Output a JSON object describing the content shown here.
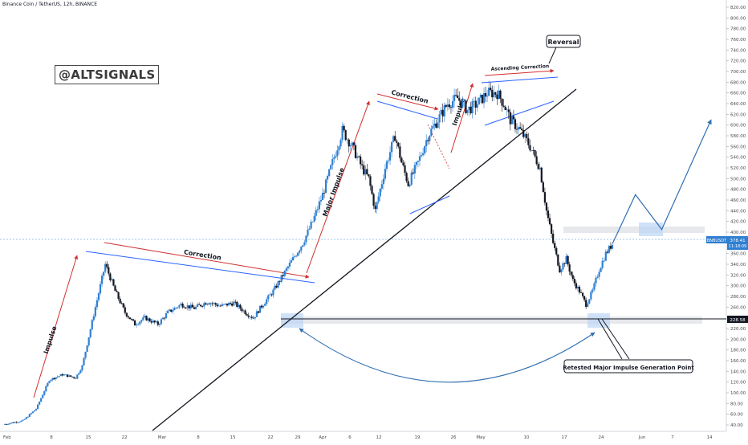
{
  "header": {
    "symbol_line": "Binance Coin / TetherUS, 12h, BINANCE"
  },
  "watermark": "@ALTSIGNALS",
  "price_badges": {
    "current_price": "378.41",
    "countdown": "11:18:09",
    "symbol_tag": "BNBUSDT",
    "support_price": "228.58"
  },
  "annotations": {
    "impulse": "Impulse",
    "correction_1": "Correction",
    "major_impulse": "Major Impulse",
    "correction_2": "Correction",
    "impulse_2": "Impulse",
    "ascending_correction": "Ascending Correction",
    "reversal": "Reversal",
    "retest": "Retested Major Impulse Generation Point"
  },
  "colors": {
    "candle_up": "#2f7fd1",
    "candle_down": "#131722",
    "arrow_red": "#d12e2e",
    "trend_blue": "#2962ff",
    "projection_blue": "#2f6fb0",
    "support_zone": "#e6e8ec",
    "highlight_zone": "#bcd6f5",
    "axis_text": "#4a4a4a"
  },
  "chart_data": {
    "type": "candlestick",
    "symbol": "BNBUSDT",
    "exchange": "BINANCE",
    "timeframe": "12h",
    "y_axis_ticks": [
      40,
      60,
      80,
      100,
      120,
      140,
      160,
      180,
      200,
      220,
      240,
      260,
      280,
      300,
      320,
      340,
      360,
      380,
      400,
      420,
      440,
      460,
      480,
      500,
      520,
      540,
      560,
      580,
      600,
      620,
      640,
      660,
      680,
      700,
      720,
      740,
      760,
      780,
      800,
      820
    ],
    "x_axis_ticks": [
      "Feb",
      "8",
      "15",
      "22",
      "Mar",
      "8",
      "15",
      "22",
      "29",
      "Apr",
      "6",
      "12",
      "19",
      "26",
      "May",
      "10",
      "17",
      "24",
      "Jun",
      "7",
      "14"
    ],
    "ylim": [
      30,
      830
    ],
    "price_path": [
      {
        "t": 0,
        "price": 41
      },
      {
        "t": 6,
        "price": 48
      },
      {
        "t": 10,
        "price": 70
      },
      {
        "t": 14,
        "price": 124
      },
      {
        "t": 18,
        "price": 134
      },
      {
        "t": 22,
        "price": 128
      },
      {
        "t": 24,
        "price": 150
      },
      {
        "t": 28,
        "price": 260
      },
      {
        "t": 31,
        "price": 340
      },
      {
        "t": 34,
        "price": 290
      },
      {
        "t": 37,
        "price": 250
      },
      {
        "t": 40,
        "price": 228
      },
      {
        "t": 43,
        "price": 240
      },
      {
        "t": 47,
        "price": 228
      },
      {
        "t": 50,
        "price": 250
      },
      {
        "t": 54,
        "price": 265
      },
      {
        "t": 58,
        "price": 258
      },
      {
        "t": 62,
        "price": 270
      },
      {
        "t": 66,
        "price": 262
      },
      {
        "t": 70,
        "price": 268
      },
      {
        "t": 74,
        "price": 248
      },
      {
        "t": 76,
        "price": 240
      },
      {
        "t": 78,
        "price": 258
      },
      {
        "t": 82,
        "price": 290
      },
      {
        "t": 85,
        "price": 320
      },
      {
        "t": 88,
        "price": 350
      },
      {
        "t": 91,
        "price": 380
      },
      {
        "t": 94,
        "price": 420
      },
      {
        "t": 97,
        "price": 470
      },
      {
        "t": 100,
        "price": 530
      },
      {
        "t": 103,
        "price": 590
      },
      {
        "t": 106,
        "price": 560
      },
      {
        "t": 109,
        "price": 520
      },
      {
        "t": 111,
        "price": 500
      },
      {
        "t": 113,
        "price": 440
      },
      {
        "t": 116,
        "price": 520
      },
      {
        "t": 119,
        "price": 580
      },
      {
        "t": 121,
        "price": 530
      },
      {
        "t": 123,
        "price": 490
      },
      {
        "t": 126,
        "price": 530
      },
      {
        "t": 129,
        "price": 580
      },
      {
        "t": 132,
        "price": 610
      },
      {
        "t": 135,
        "price": 640
      },
      {
        "t": 138,
        "price": 650
      },
      {
        "t": 141,
        "price": 628
      },
      {
        "t": 144,
        "price": 640
      },
      {
        "t": 147,
        "price": 660
      },
      {
        "t": 150,
        "price": 660
      },
      {
        "t": 152,
        "price": 640
      },
      {
        "t": 154,
        "price": 610
      },
      {
        "t": 157,
        "price": 590
      },
      {
        "t": 160,
        "price": 560
      },
      {
        "t": 163,
        "price": 520
      },
      {
        "t": 165,
        "price": 440
      },
      {
        "t": 167,
        "price": 380
      },
      {
        "t": 169,
        "price": 330
      },
      {
        "t": 171,
        "price": 350
      },
      {
        "t": 173,
        "price": 310
      },
      {
        "t": 175,
        "price": 290
      },
      {
        "t": 177,
        "price": 265
      },
      {
        "t": 179,
        "price": 290
      },
      {
        "t": 181,
        "price": 330
      },
      {
        "t": 183,
        "price": 360
      },
      {
        "t": 185,
        "price": 378
      }
    ],
    "levels": [
      {
        "label": "support",
        "price": 228.58
      },
      {
        "label": "resistance",
        "price": 398
      }
    ],
    "projection": [
      {
        "t": 185,
        "price": 378
      },
      {
        "t": 192,
        "price": 470
      },
      {
        "t": 200,
        "price": 405
      },
      {
        "t": 215,
        "price": 610
      }
    ]
  }
}
